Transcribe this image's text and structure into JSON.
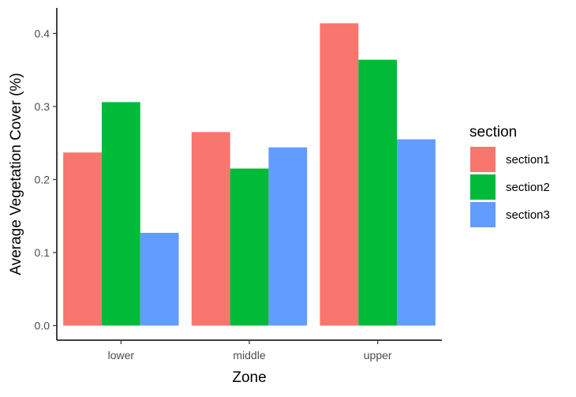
{
  "chart_data": {
    "type": "bar",
    "categories": [
      "lower",
      "middle",
      "upper"
    ],
    "series": [
      {
        "name": "section1",
        "color": "#F8766D",
        "values": [
          0.237,
          0.265,
          0.414
        ]
      },
      {
        "name": "section2",
        "color": "#00BA38",
        "values": [
          0.306,
          0.215,
          0.364
        ]
      },
      {
        "name": "section3",
        "color": "#619CFF",
        "values": [
          0.127,
          0.244,
          0.255
        ]
      }
    ],
    "xlabel": "Zone",
    "ylabel": "Average Vegetation Cover (%)",
    "ylim": [
      -0.02,
      0.435
    ],
    "yticks": [
      0.0,
      0.1,
      0.2,
      0.3,
      0.4
    ],
    "ytick_labels": [
      "0.0",
      "0.1",
      "0.2",
      "0.3",
      "0.4"
    ],
    "legend": {
      "title": "section",
      "position": "right"
    },
    "grid": false
  }
}
